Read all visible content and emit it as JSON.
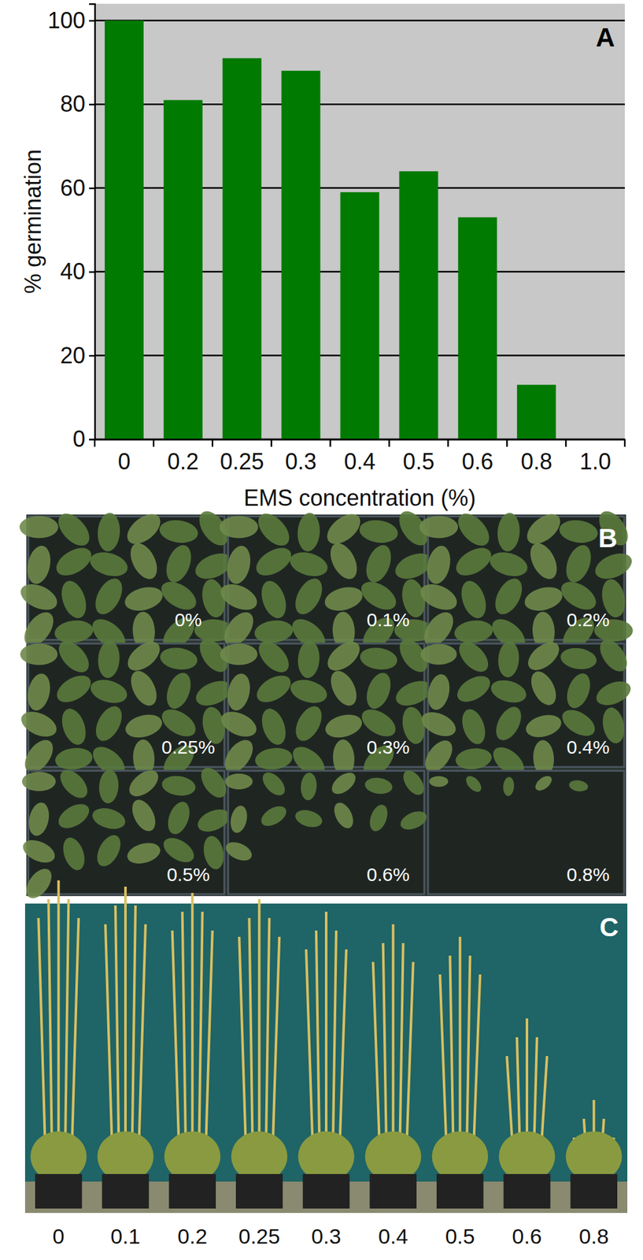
{
  "chart_data": {
    "type": "bar",
    "annotation": "A",
    "x_label": "EMS concentration (%)",
    "y_label": "% germination",
    "categories": [
      "0",
      "0.2",
      "0.25",
      "0.3",
      "0.4",
      "0.5",
      "0.6",
      "0.8",
      "1.0"
    ],
    "values": [
      100,
      81,
      91,
      88,
      59,
      64,
      53,
      13,
      0
    ],
    "color": "#007a00",
    "ylim": [
      0,
      104
    ],
    "yticks": [
      0,
      20,
      40,
      60,
      80,
      100
    ],
    "grid": true
  },
  "photo_panels": [
    {
      "panel_label": "B",
      "labels": [
        "0%",
        "0.1%",
        "0.2%",
        "0.25%",
        "0.3%",
        "0.4%",
        "0.5%",
        "0.6%",
        "0.8%"
      ]
    },
    {
      "panel_label": "C",
      "labels": [
        "0",
        "0.1",
        "0.2",
        "0.25",
        "0.3",
        "0.4",
        "0.5",
        "0.6",
        "0.8"
      ]
    }
  ]
}
